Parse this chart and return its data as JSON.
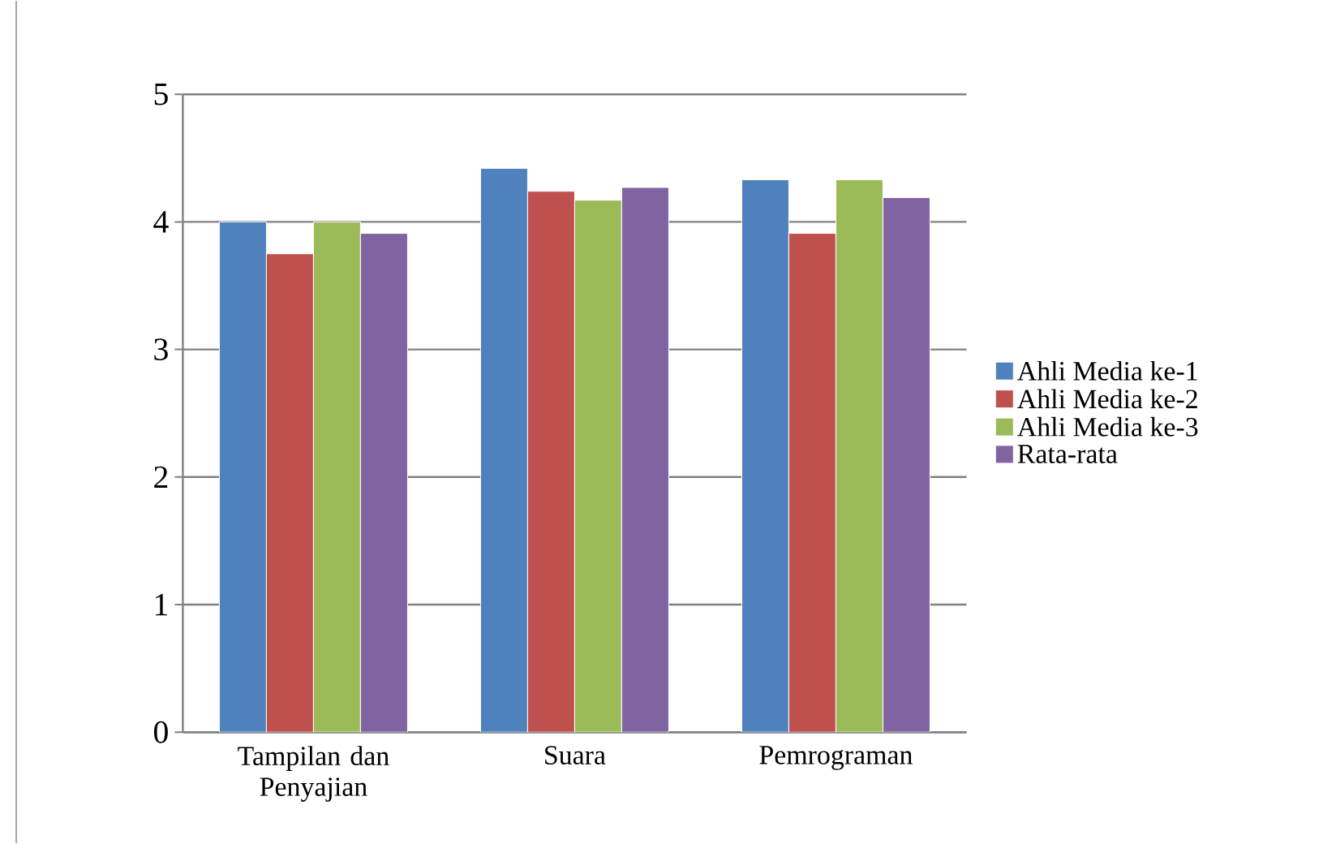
{
  "chart_data": {
    "type": "bar",
    "categories": [
      "Tampilan dan Penyajian",
      "Suara",
      "Pemrograman"
    ],
    "series": [
      {
        "name": "Ahli Media ke-1",
        "color": "#4f81bd",
        "values": [
          4.0,
          4.42,
          4.33
        ]
      },
      {
        "name": "Ahli Media ke-2",
        "color": "#c0504d",
        "values": [
          3.75,
          4.24,
          3.91
        ]
      },
      {
        "name": "Ahli Media ke-3",
        "color": "#9bbb59",
        "values": [
          4.0,
          4.17,
          4.33
        ]
      },
      {
        "name": "Rata-rata",
        "color": "#8064a2",
        "values": [
          3.91,
          4.27,
          4.19
        ]
      }
    ],
    "ylim": [
      0,
      5
    ],
    "yticks": [
      0,
      1,
      2,
      3,
      4,
      5
    ],
    "grid": "y",
    "legend": "right"
  }
}
